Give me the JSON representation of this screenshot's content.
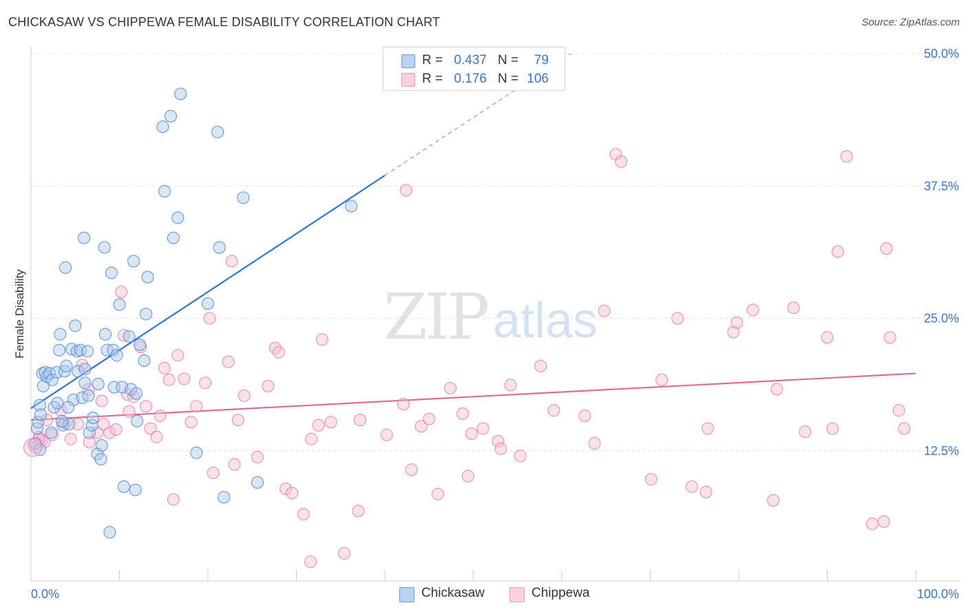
{
  "header": {
    "title": "CHICKASAW VS CHIPPEWA FEMALE DISABILITY CORRELATION CHART",
    "source": "Source: ZipAtlas.com"
  },
  "legend": {
    "rows": [
      {
        "r_label": "R =",
        "r_value": "0.437",
        "n_label": "N =",
        "n_value": "79"
      },
      {
        "r_label": "R =",
        "r_value": "0.176",
        "n_label": "N =",
        "n_value": "106"
      }
    ]
  },
  "bottom_legend": {
    "series1": "Chickasaw",
    "series2": "Chippewa"
  },
  "watermark": {
    "part1": "ZIP",
    "part2": "atlas"
  },
  "chart_data": {
    "type": "scatter",
    "title": "CHICKASAW VS CHIPPEWA FEMALE DISABILITY CORRELATION CHART",
    "xlabel": "",
    "ylabel": "Female Disability",
    "xlim": [
      0,
      100
    ],
    "ylim": [
      0,
      52
    ],
    "x_tick_labels": [
      "0.0%",
      "100.0%"
    ],
    "y_ticks": [
      12.5,
      25.0,
      37.5,
      50.0
    ],
    "y_tick_labels": [
      "12.5%",
      "25.0%",
      "37.5%",
      "50.0%"
    ],
    "grid": true,
    "legend_position": "top-center",
    "colors": {
      "chickasaw_fill": "#a9c8f0",
      "chickasaw_stroke": "#5d8fd0",
      "chickasaw_line": "#2f74d0",
      "chippewa_fill": "#f7bcd0",
      "chippewa_stroke": "#e488a8",
      "chippewa_line": "#e06c96",
      "axis_label": "#3b75c4"
    },
    "series": [
      {
        "name": "Chickasaw",
        "r": 0.437,
        "n": 79,
        "trend": {
          "x0": 0,
          "y0": 16.5,
          "x1": 40,
          "y1": 38.5,
          "dash_x1": 61,
          "dash_y1": 50
        },
        "points": [
          [
            0.5,
            13.2
          ],
          [
            0.7,
            14.6
          ],
          [
            0.8,
            15.2
          ],
          [
            1.0,
            12.6
          ],
          [
            1.0,
            16.8
          ],
          [
            1.1,
            15.9
          ],
          [
            1.3,
            19.8
          ],
          [
            1.4,
            18.6
          ],
          [
            1.6,
            19.9
          ],
          [
            1.8,
            19.5
          ],
          [
            2.1,
            19.8
          ],
          [
            2.3,
            14.2
          ],
          [
            2.4,
            19.2
          ],
          [
            2.6,
            16.6
          ],
          [
            2.9,
            19.9
          ],
          [
            3.0,
            17.0
          ],
          [
            3.2,
            22.0
          ],
          [
            3.3,
            23.5
          ],
          [
            3.6,
            14.9
          ],
          [
            3.8,
            20.0
          ],
          [
            3.9,
            29.8
          ],
          [
            4.0,
            20.5
          ],
          [
            4.3,
            15.0
          ],
          [
            4.6,
            22.1
          ],
          [
            4.8,
            17.3
          ],
          [
            5.0,
            24.3
          ],
          [
            5.2,
            21.9
          ],
          [
            5.3,
            20.0
          ],
          [
            5.6,
            22.0
          ],
          [
            5.8,
            17.5
          ],
          [
            6.0,
            32.6
          ],
          [
            6.1,
            18.9
          ],
          [
            6.1,
            20.2
          ],
          [
            6.4,
            21.9
          ],
          [
            6.5,
            17.7
          ],
          [
            6.6,
            14.2
          ],
          [
            6.9,
            14.9
          ],
          [
            7.0,
            15.6
          ],
          [
            7.5,
            12.2
          ],
          [
            7.6,
            18.8
          ],
          [
            7.9,
            11.7
          ],
          [
            8.0,
            13.0
          ],
          [
            8.3,
            31.7
          ],
          [
            8.4,
            23.5
          ],
          [
            8.6,
            22.0
          ],
          [
            8.9,
            4.8
          ],
          [
            9.1,
            29.3
          ],
          [
            9.3,
            22.0
          ],
          [
            9.4,
            18.5
          ],
          [
            9.7,
            21.5
          ],
          [
            10.0,
            26.3
          ],
          [
            10.3,
            18.5
          ],
          [
            10.5,
            9.1
          ],
          [
            11.1,
            23.3
          ],
          [
            11.3,
            18.3
          ],
          [
            11.6,
            30.4
          ],
          [
            11.8,
            8.8
          ],
          [
            11.9,
            17.9
          ],
          [
            12.0,
            15.3
          ],
          [
            12.3,
            22.5
          ],
          [
            12.8,
            21.0
          ],
          [
            13.0,
            25.4
          ],
          [
            13.2,
            28.9
          ],
          [
            14.9,
            43.1
          ],
          [
            15.1,
            37.0
          ],
          [
            15.8,
            44.1
          ],
          [
            16.1,
            32.6
          ],
          [
            16.6,
            34.5
          ],
          [
            16.9,
            46.2
          ],
          [
            18.7,
            12.3
          ],
          [
            20.0,
            26.4
          ],
          [
            21.1,
            42.6
          ],
          [
            21.3,
            31.7
          ],
          [
            21.8,
            8.1
          ],
          [
            24.0,
            36.4
          ],
          [
            25.6,
            9.5
          ],
          [
            36.2,
            35.6
          ],
          [
            4.2,
            16.6
          ],
          [
            3.5,
            15.3
          ]
        ]
      },
      {
        "name": "Chippewa",
        "r": 0.176,
        "n": 106,
        "trend": {
          "x0": 0,
          "y0": 15.4,
          "x1": 100,
          "y1": 19.8
        },
        "points": [
          [
            0.3,
            13.1
          ],
          [
            0.5,
            12.8
          ],
          [
            0.9,
            13.8
          ],
          [
            1.2,
            13.5
          ],
          [
            1.5,
            13.3
          ],
          [
            1.8,
            15.4
          ],
          [
            2.4,
            14.0
          ],
          [
            3.4,
            16.3
          ],
          [
            3.8,
            15.1
          ],
          [
            4.5,
            13.6
          ],
          [
            5.3,
            15.0
          ],
          [
            5.8,
            20.6
          ],
          [
            6.5,
            18.3
          ],
          [
            6.6,
            13.3
          ],
          [
            7.5,
            14.2
          ],
          [
            8.0,
            17.2
          ],
          [
            8.2,
            15.0
          ],
          [
            8.9,
            14.2
          ],
          [
            9.6,
            14.5
          ],
          [
            10.2,
            27.5
          ],
          [
            10.5,
            23.4
          ],
          [
            10.9,
            17.8
          ],
          [
            11.1,
            16.2
          ],
          [
            11.6,
            17.6
          ],
          [
            12.4,
            22.3
          ],
          [
            13.0,
            16.7
          ],
          [
            13.5,
            14.6
          ],
          [
            14.2,
            13.8
          ],
          [
            14.6,
            15.8
          ],
          [
            15.1,
            20.3
          ],
          [
            15.6,
            19.2
          ],
          [
            16.1,
            7.9
          ],
          [
            16.6,
            21.5
          ],
          [
            17.3,
            19.3
          ],
          [
            18.1,
            15.2
          ],
          [
            18.7,
            16.7
          ],
          [
            19.7,
            18.9
          ],
          [
            20.2,
            25.0
          ],
          [
            20.6,
            10.4
          ],
          [
            22.3,
            20.9
          ],
          [
            22.7,
            30.4
          ],
          [
            23.0,
            11.2
          ],
          [
            23.4,
            15.4
          ],
          [
            24.1,
            17.7
          ],
          [
            25.6,
            11.9
          ],
          [
            26.8,
            18.6
          ],
          [
            27.6,
            22.2
          ],
          [
            28.0,
            21.8
          ],
          [
            28.8,
            8.9
          ],
          [
            29.5,
            8.5
          ],
          [
            30.8,
            6.5
          ],
          [
            31.6,
            2.0
          ],
          [
            31.7,
            13.6
          ],
          [
            32.5,
            14.9
          ],
          [
            32.9,
            23.0
          ],
          [
            33.9,
            15.2
          ],
          [
            35.4,
            2.8
          ],
          [
            37.0,
            6.8
          ],
          [
            37.2,
            15.4
          ],
          [
            40.2,
            14.0
          ],
          [
            42.1,
            16.9
          ],
          [
            42.4,
            37.1
          ],
          [
            43.0,
            10.7
          ],
          [
            44.1,
            14.8
          ],
          [
            45.0,
            15.5
          ],
          [
            46.0,
            8.4
          ],
          [
            47.4,
            18.4
          ],
          [
            48.8,
            16.0
          ],
          [
            49.4,
            10.1
          ],
          [
            49.8,
            14.1
          ],
          [
            51.1,
            14.6
          ],
          [
            52.8,
            13.4
          ],
          [
            53.1,
            12.7
          ],
          [
            54.2,
            18.7
          ],
          [
            55.3,
            12.0
          ],
          [
            57.6,
            20.5
          ],
          [
            59.1,
            16.3
          ],
          [
            62.6,
            15.8
          ],
          [
            63.7,
            13.2
          ],
          [
            64.8,
            25.7
          ],
          [
            66.1,
            40.5
          ],
          [
            66.7,
            39.8
          ],
          [
            70.1,
            9.8
          ],
          [
            71.3,
            19.2
          ],
          [
            73.1,
            25.0
          ],
          [
            74.7,
            9.1
          ],
          [
            76.3,
            8.6
          ],
          [
            76.5,
            14.6
          ],
          [
            79.4,
            23.7
          ],
          [
            79.8,
            24.6
          ],
          [
            81.6,
            25.8
          ],
          [
            83.9,
            7.8
          ],
          [
            84.3,
            18.3
          ],
          [
            86.2,
            26.0
          ],
          [
            87.5,
            14.3
          ],
          [
            90.0,
            23.2
          ],
          [
            90.6,
            14.6
          ],
          [
            91.2,
            31.3
          ],
          [
            92.2,
            40.3
          ],
          [
            95.1,
            5.6
          ],
          [
            96.4,
            5.8
          ],
          [
            96.7,
            31.6
          ],
          [
            97.1,
            23.2
          ],
          [
            98.1,
            16.3
          ],
          [
            98.7,
            14.6
          ],
          [
            0.9,
            13.6
          ]
        ]
      }
    ]
  }
}
